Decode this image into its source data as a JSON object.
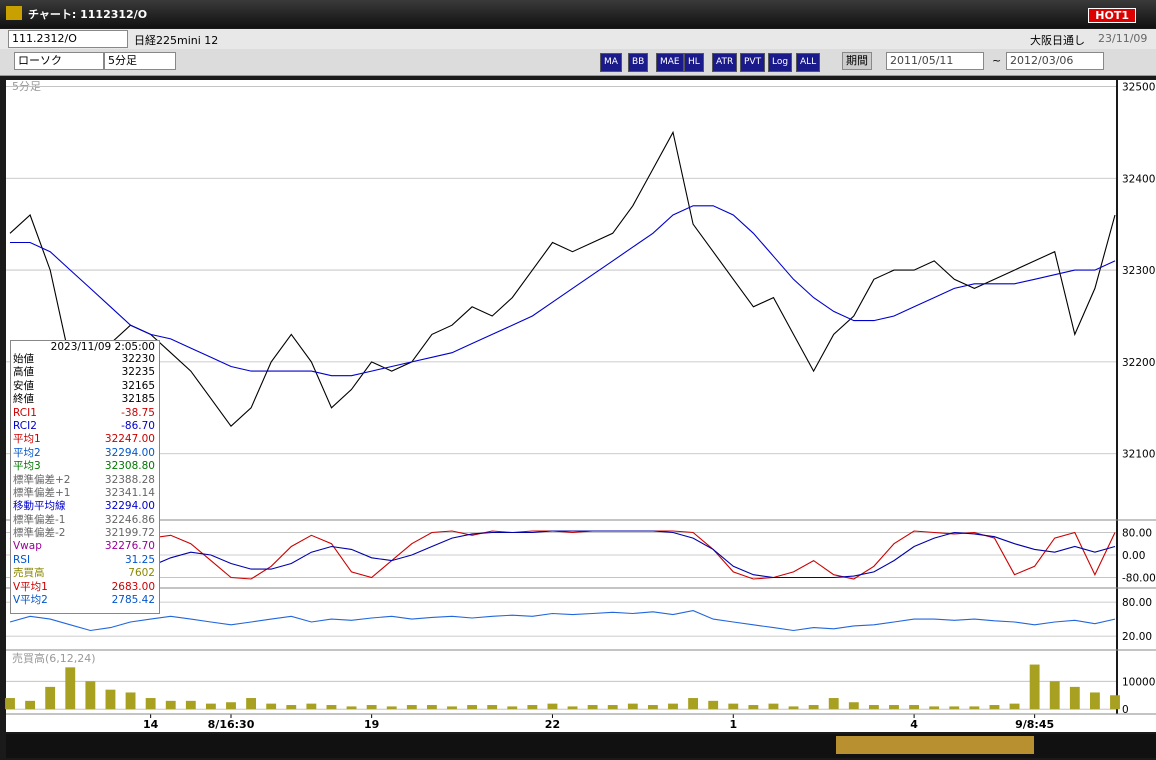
{
  "window": {
    "title": "チャート: 1112312/O",
    "hot_button": "HOT1"
  },
  "toolbar": {
    "symbol": "111.2312/O",
    "name": "日経225mini 12",
    "market": "大阪日通し",
    "date": "23/11/09",
    "chart_type": "ローソク",
    "period": "5分足",
    "period_button": "期間",
    "from": "2011/05/11",
    "tilde": "~",
    "to": "2012/03/06",
    "buttons": [
      "MA",
      "BB",
      "MAE",
      "HL",
      "ATR",
      "PVT",
      "Log",
      "ALL"
    ]
  },
  "info_panel": {
    "datetime": "2023/11/09  2:05:00",
    "rows": [
      {
        "label": "始値",
        "value": "32230",
        "color": "#000000"
      },
      {
        "label": "高値",
        "value": "32235",
        "color": "#000000"
      },
      {
        "label": "安値",
        "value": "32165",
        "color": "#000000"
      },
      {
        "label": "終値",
        "value": "32185",
        "color": "#000000"
      },
      {
        "label": "RCI1",
        "value": "-38.75",
        "color": "#cc0000"
      },
      {
        "label": "RCI2",
        "value": "-86.70",
        "color": "#0000cc"
      },
      {
        "label": "平均1",
        "value": "32247.00",
        "color": "#cc0000"
      },
      {
        "label": "平均2",
        "value": "32294.00",
        "color": "#0055cc"
      },
      {
        "label": "平均3",
        "value": "32308.80",
        "color": "#007700"
      },
      {
        "label": "標準偏差+2",
        "value": "32388.28",
        "color": "#666666"
      },
      {
        "label": "標準偏差+1",
        "value": "32341.14",
        "color": "#666666"
      },
      {
        "label": "移動平均線",
        "value": "32294.00",
        "color": "#0000cc"
      },
      {
        "label": "標準偏差-1",
        "value": "32246.86",
        "color": "#666666"
      },
      {
        "label": "標準偏差-2",
        "value": "32199.72",
        "color": "#666666"
      },
      {
        "label": "Vwap",
        "value": "32276.70",
        "color": "#990099"
      },
      {
        "label": "RSI",
        "value": "31.25",
        "color": "#0055cc"
      },
      {
        "label": "売買高",
        "value": "7602",
        "color": "#888800"
      },
      {
        "label": "V平均1",
        "value": "2683.00",
        "color": "#cc0000"
      },
      {
        "label": "V平均2",
        "value": "2785.42",
        "color": "#0055cc"
      }
    ]
  },
  "chart_data": [
    {
      "type": "line",
      "label": "5分足",
      "categories": [
        null,
        null,
        null,
        null,
        null,
        null,
        null,
        "14",
        null,
        null,
        null,
        "8/16:30",
        null,
        null,
        null,
        null,
        null,
        null,
        "19",
        null,
        null,
        null,
        null,
        null,
        null,
        null,
        null,
        "22",
        null,
        null,
        null,
        null,
        null,
        null,
        null,
        null,
        "1",
        null,
        null,
        null,
        null,
        null,
        null,
        null,
        null,
        "4",
        null,
        null,
        null,
        null,
        null,
        "9/8:45",
        null,
        null,
        null,
        null
      ],
      "series": [
        {
          "name": "終値",
          "color": "#000000",
          "values": [
            32340,
            32360,
            32300,
            32200,
            32180,
            32220,
            32240,
            32230,
            32210,
            32190,
            32160,
            32130,
            32150,
            32200,
            32230,
            32200,
            32150,
            32170,
            32200,
            32190,
            32200,
            32230,
            32240,
            32260,
            32250,
            32270,
            32300,
            32330,
            32320,
            32330,
            32340,
            32370,
            32410,
            32450,
            32350,
            32320,
            32290,
            32260,
            32270,
            32230,
            32190,
            32230,
            32250,
            32290,
            32300,
            32300,
            32310,
            32290,
            32280,
            32290,
            32300,
            32310,
            32320,
            32230,
            32280,
            32360
          ]
        },
        {
          "name": "移動平均線",
          "color": "#0000cc",
          "values": [
            32330,
            32330,
            32320,
            32300,
            32280,
            32260,
            32240,
            32230,
            32225,
            32215,
            32205,
            32195,
            32190,
            32190,
            32190,
            32190,
            32185,
            32185,
            32190,
            32195,
            32200,
            32205,
            32210,
            32220,
            32230,
            32240,
            32250,
            32265,
            32280,
            32295,
            32310,
            32325,
            32340,
            32360,
            32370,
            32370,
            32360,
            32340,
            32315,
            32290,
            32270,
            32255,
            32245,
            32245,
            32250,
            32260,
            32270,
            32280,
            32285,
            32285,
            32285,
            32290,
            32295,
            32300,
            32300,
            32310
          ]
        }
      ],
      "ylim": [
        32030,
        32507
      ],
      "yticks": [
        32100,
        32200,
        32300,
        32400,
        32500
      ],
      "grid": true
    },
    {
      "type": "line",
      "series": [
        {
          "name": "RCI1",
          "color": "#cc0000",
          "values": [
            60,
            20,
            -60,
            -90,
            -80,
            -40,
            20,
            60,
            70,
            40,
            -20,
            -80,
            -85,
            -40,
            30,
            70,
            40,
            -60,
            -80,
            -20,
            40,
            80,
            85,
            70,
            85,
            80,
            85,
            85,
            80,
            85,
            85,
            85,
            85,
            85,
            80,
            20,
            -60,
            -85,
            -80,
            -60,
            -20,
            -70,
            -85,
            -40,
            40,
            85,
            80,
            75,
            80,
            60,
            -70,
            -40,
            60,
            80,
            -70,
            80
          ]
        },
        {
          "name": "RCI2",
          "color": "#0000aa",
          "values": [
            20,
            -10,
            -40,
            -70,
            -80,
            -75,
            -60,
            -40,
            -10,
            10,
            0,
            -30,
            -50,
            -50,
            -30,
            10,
            30,
            20,
            -10,
            -20,
            0,
            30,
            60,
            75,
            80,
            80,
            80,
            85,
            85,
            85,
            85,
            85,
            85,
            80,
            60,
            20,
            -40,
            -70,
            -80,
            -80,
            -80,
            -80,
            -75,
            -60,
            -20,
            30,
            60,
            80,
            75,
            65,
            40,
            20,
            10,
            30,
            10,
            30
          ]
        }
      ],
      "ylim": [
        -110,
        110
      ],
      "yticks": [
        {
          "value": 80,
          "label": "80.00"
        },
        {
          "value": 0,
          "label": "0.00"
        },
        {
          "value": -80,
          "label": "-80.00"
        }
      ],
      "grid": true
    },
    {
      "type": "line",
      "series": [
        {
          "name": "RSI",
          "color": "#2266dd",
          "values": [
            45,
            55,
            50,
            40,
            30,
            35,
            45,
            50,
            55,
            50,
            45,
            40,
            45,
            50,
            55,
            45,
            50,
            48,
            52,
            55,
            50,
            53,
            55,
            52,
            55,
            57,
            55,
            60,
            58,
            60,
            62,
            60,
            63,
            58,
            65,
            50,
            45,
            40,
            35,
            30,
            35,
            33,
            38,
            40,
            45,
            50,
            50,
            48,
            50,
            47,
            45,
            40,
            45,
            48,
            42,
            50
          ]
        }
      ],
      "ylim": [
        -1,
        105
      ],
      "yticks": [
        {
          "value": 80,
          "label": "80.00"
        },
        {
          "value": 20,
          "label": "20.00"
        }
      ],
      "grid": true
    },
    {
      "type": "bar",
      "label": "売買高(6,12,24)",
      "series": [
        {
          "name": "売買高",
          "color": "#a8a020",
          "values": [
            4000,
            3000,
            8000,
            15000,
            10000,
            7000,
            6000,
            4000,
            3000,
            3000,
            2000,
            2500,
            4000,
            2000,
            1500,
            2000,
            1500,
            1000,
            1500,
            1000,
            1500,
            1500,
            1000,
            1500,
            1500,
            1000,
            1500,
            2000,
            1000,
            1500,
            1500,
            2000,
            1500,
            2000,
            4000,
            3000,
            2000,
            1500,
            2000,
            1000,
            1500,
            4000,
            2500,
            1500,
            1500,
            1500,
            1000,
            1000,
            1000,
            1500,
            2000,
            16000,
            10000,
            8000,
            6000,
            5000
          ]
        }
      ],
      "ylim": [
        -1000,
        20500
      ],
      "yticks": [
        10000,
        0
      ],
      "grid": true
    }
  ]
}
